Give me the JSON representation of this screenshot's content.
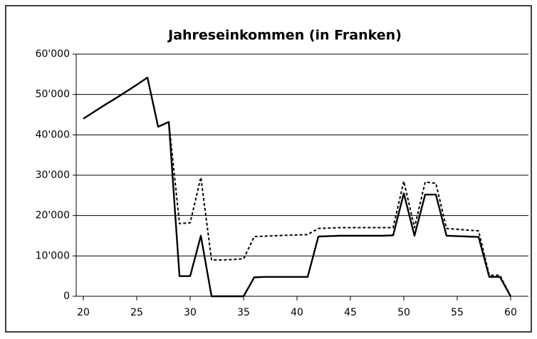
{
  "chart_data": {
    "type": "line",
    "title": "Jahreseinkommen (in Franken)",
    "x": [
      20,
      21,
      22,
      23,
      24,
      25,
      26,
      27,
      28,
      29,
      30,
      31,
      32,
      33,
      34,
      35,
      36,
      37,
      38,
      39,
      40,
      41,
      42,
      43,
      44,
      45,
      46,
      47,
      48,
      49,
      50,
      51,
      52,
      53,
      54,
      55,
      56,
      57,
      58,
      59,
      60
    ],
    "series": [
      {
        "color": "#000000",
        "dashed": false,
        "values": [
          44000,
          45700,
          47400,
          49000,
          50700,
          52400,
          54200,
          42000,
          43200,
          5000,
          5000,
          15000,
          0,
          0,
          0,
          0,
          4700,
          4800,
          4800,
          4800,
          4800,
          4800,
          14800,
          14900,
          15000,
          15000,
          15000,
          15000,
          15000,
          15100,
          25500,
          15000,
          25200,
          25200,
          15000,
          14900,
          14800,
          14700,
          4800,
          4800,
          0
        ]
      },
      {
        "color": "#000000",
        "dashed": true,
        "values": [
          44000,
          45700,
          47400,
          49000,
          50700,
          52400,
          54200,
          42000,
          43200,
          18000,
          18200,
          29500,
          9000,
          9000,
          9100,
          9300,
          14800,
          14900,
          15000,
          15100,
          15200,
          15300,
          16800,
          16900,
          17000,
          17000,
          17000,
          17000,
          17000,
          17000,
          28500,
          17000,
          28300,
          28000,
          16800,
          16600,
          16400,
          16200,
          5200,
          5200,
          0
        ]
      }
    ],
    "xlim": [
      19.33,
      61.67
    ],
    "xticks": [
      20,
      25,
      30,
      35,
      40,
      45,
      50,
      55,
      60
    ],
    "ylim": [
      0,
      60000
    ],
    "yticks": [
      0,
      {
        "value": 10000,
        "label": "10'000"
      },
      {
        "value": 20000,
        "label": "20'000"
      },
      {
        "value": 30000,
        "label": "30'000"
      },
      {
        "value": 40000,
        "label": "40'000"
      },
      {
        "value": 50000,
        "label": "50'000"
      },
      {
        "value": 60000,
        "label": "60'000"
      }
    ],
    "grid": true
  }
}
